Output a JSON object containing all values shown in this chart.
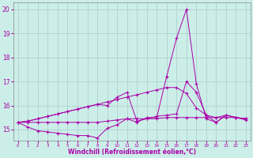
{
  "bg_color": "#cceee8",
  "grid_color": "#aacccc",
  "line_color": "#aa00aa",
  "xlabel": "Windchill (Refroidissement éolien,°C)",
  "xlabel_color": "#aa00aa",
  "ylabel_ticks": [
    15,
    16,
    17,
    18,
    19,
    20
  ],
  "xlim": [
    -0.5,
    23.5
  ],
  "ylim": [
    14.55,
    20.3
  ],
  "x_ticks": [
    0,
    1,
    2,
    3,
    4,
    5,
    6,
    7,
    8,
    9,
    10,
    11,
    12,
    13,
    14,
    15,
    16,
    17,
    18,
    19,
    20,
    21,
    22,
    23
  ],
  "series1_spike": {
    "x": [
      0,
      1,
      2,
      3,
      4,
      5,
      6,
      7,
      8,
      9,
      10,
      11,
      12,
      13,
      14,
      15,
      16,
      17,
      18,
      19,
      20,
      21,
      22,
      23
    ],
    "y": [
      15.3,
      15.1,
      14.95,
      14.9,
      14.85,
      14.8,
      14.75,
      14.75,
      14.65,
      15.05,
      15.2,
      15.45,
      15.3,
      15.5,
      15.5,
      17.2,
      18.8,
      20.0,
      16.9,
      15.45,
      15.3,
      15.6,
      15.5,
      15.4
    ]
  },
  "series2_flat": {
    "x": [
      0,
      1,
      2,
      3,
      4,
      5,
      6,
      7,
      8,
      9,
      10,
      11,
      12,
      13,
      14,
      15,
      16,
      17,
      18,
      19,
      20,
      21,
      22,
      23
    ],
    "y": [
      15.3,
      15.3,
      15.3,
      15.3,
      15.3,
      15.3,
      15.3,
      15.3,
      15.3,
      15.35,
      15.4,
      15.45,
      15.45,
      15.45,
      15.45,
      15.5,
      15.5,
      15.5,
      15.5,
      15.5,
      15.5,
      15.5,
      15.5,
      15.45
    ]
  },
  "series3_rise": {
    "x": [
      0,
      1,
      2,
      3,
      4,
      5,
      6,
      7,
      8,
      9,
      10,
      11,
      12,
      13,
      14,
      15,
      16,
      17,
      18,
      19,
      20,
      21,
      22,
      23
    ],
    "y": [
      15.3,
      15.35,
      15.45,
      15.55,
      15.65,
      15.75,
      15.85,
      15.95,
      16.05,
      16.15,
      16.25,
      16.35,
      16.45,
      16.55,
      16.65,
      16.75,
      16.75,
      16.5,
      15.9,
      15.6,
      15.5,
      15.6,
      15.5,
      15.45
    ]
  },
  "series4_mid": {
    "x": [
      0,
      1,
      2,
      3,
      4,
      5,
      6,
      7,
      8,
      9,
      10,
      11,
      12,
      13,
      14,
      15,
      16,
      17,
      18,
      19,
      20,
      21,
      22,
      23
    ],
    "y": [
      15.3,
      15.35,
      15.45,
      15.55,
      15.65,
      15.75,
      15.85,
      15.95,
      16.05,
      16.0,
      16.35,
      16.55,
      15.35,
      15.45,
      15.55,
      15.6,
      15.65,
      17.0,
      16.55,
      15.6,
      15.3,
      15.6,
      15.5,
      15.45
    ]
  }
}
